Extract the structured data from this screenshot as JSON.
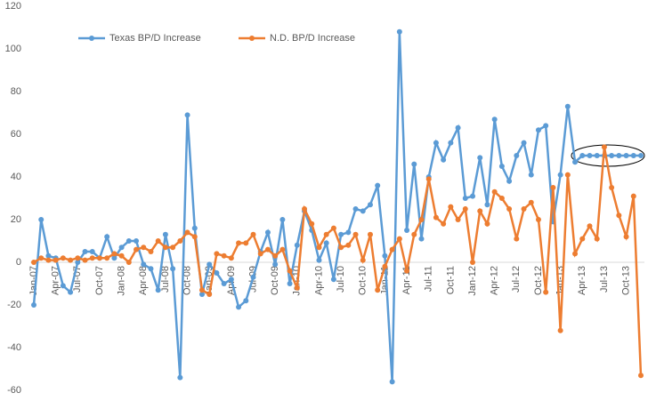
{
  "chart_data": {
    "type": "line",
    "categories": [
      "Jan-07",
      null,
      null,
      "Apr-07",
      null,
      null,
      "Jul-07",
      null,
      null,
      "Oct-07",
      null,
      null,
      "Jan-08",
      null,
      null,
      "Apr-08",
      null,
      null,
      "Jul-08",
      null,
      null,
      "Oct-08",
      null,
      null,
      "Jan-09",
      null,
      null,
      "Apr-09",
      null,
      null,
      "Jul-09",
      null,
      null,
      "Oct-09",
      null,
      null,
      "Jan-10",
      null,
      null,
      "Apr-10",
      null,
      null,
      "Jul-10",
      null,
      null,
      "Oct-10",
      null,
      null,
      "Jan-11",
      null,
      null,
      "Apr-11",
      null,
      null,
      "Jul-11",
      null,
      null,
      "Oct-11",
      null,
      null,
      "Jan-12",
      null,
      null,
      "Apr-12",
      null,
      null,
      "Jul-12",
      null,
      null,
      "Oct-12",
      null,
      null,
      "Jan-13",
      null,
      null,
      "Apr-13",
      null,
      null,
      "Jul-13",
      null,
      null,
      "Oct-13",
      null,
      null
    ],
    "series": [
      {
        "name": "Texas BP/D Increase",
        "color": "#5b9bd5",
        "values": [
          -20,
          20,
          3,
          2,
          -11,
          -14,
          0,
          5,
          5,
          2,
          12,
          2,
          7,
          10,
          10,
          -1,
          -3,
          -13,
          13,
          -3,
          -54,
          69,
          16,
          -15,
          -1,
          -5,
          -10,
          -8,
          -21,
          -18,
          -7,
          5,
          14,
          -1,
          20,
          -10,
          8,
          24,
          15,
          1,
          9,
          -8,
          13,
          14,
          25,
          24,
          27,
          36,
          3,
          -56,
          108,
          15,
          46,
          11,
          40,
          56,
          48,
          56,
          63,
          30,
          31,
          49,
          27,
          67,
          45,
          38,
          50,
          56,
          41,
          62,
          64,
          19,
          41,
          73,
          47,
          50,
          50,
          50,
          50,
          50,
          50,
          50,
          50,
          50
        ]
      },
      {
        "name": "N.D. BP/D Increase",
        "color": "#ed7d31",
        "values": [
          0,
          2,
          1,
          1,
          2,
          1,
          2,
          1,
          2,
          2,
          2,
          4,
          3,
          0,
          6,
          7,
          5,
          10,
          7,
          7,
          10,
          14,
          12,
          -13,
          -15,
          4,
          3,
          2,
          9,
          9,
          13,
          4,
          6,
          3,
          6,
          -4,
          -12,
          25,
          18,
          7,
          13,
          16,
          7,
          8,
          13,
          1,
          13,
          -13,
          -2,
          6,
          11,
          -4,
          13,
          20,
          39,
          21,
          18,
          26,
          20,
          25,
          0,
          24,
          18,
          33,
          30,
          25,
          11,
          25,
          28,
          20,
          -14,
          35,
          -32,
          41,
          4,
          11,
          17,
          11,
          54,
          35,
          22,
          12,
          31,
          -53
        ]
      }
    ],
    "ylim": [
      -60,
      120
    ],
    "yticks": [
      -60,
      -40,
      -20,
      0,
      20,
      40,
      60,
      80,
      100,
      120
    ],
    "grid": false
  }
}
